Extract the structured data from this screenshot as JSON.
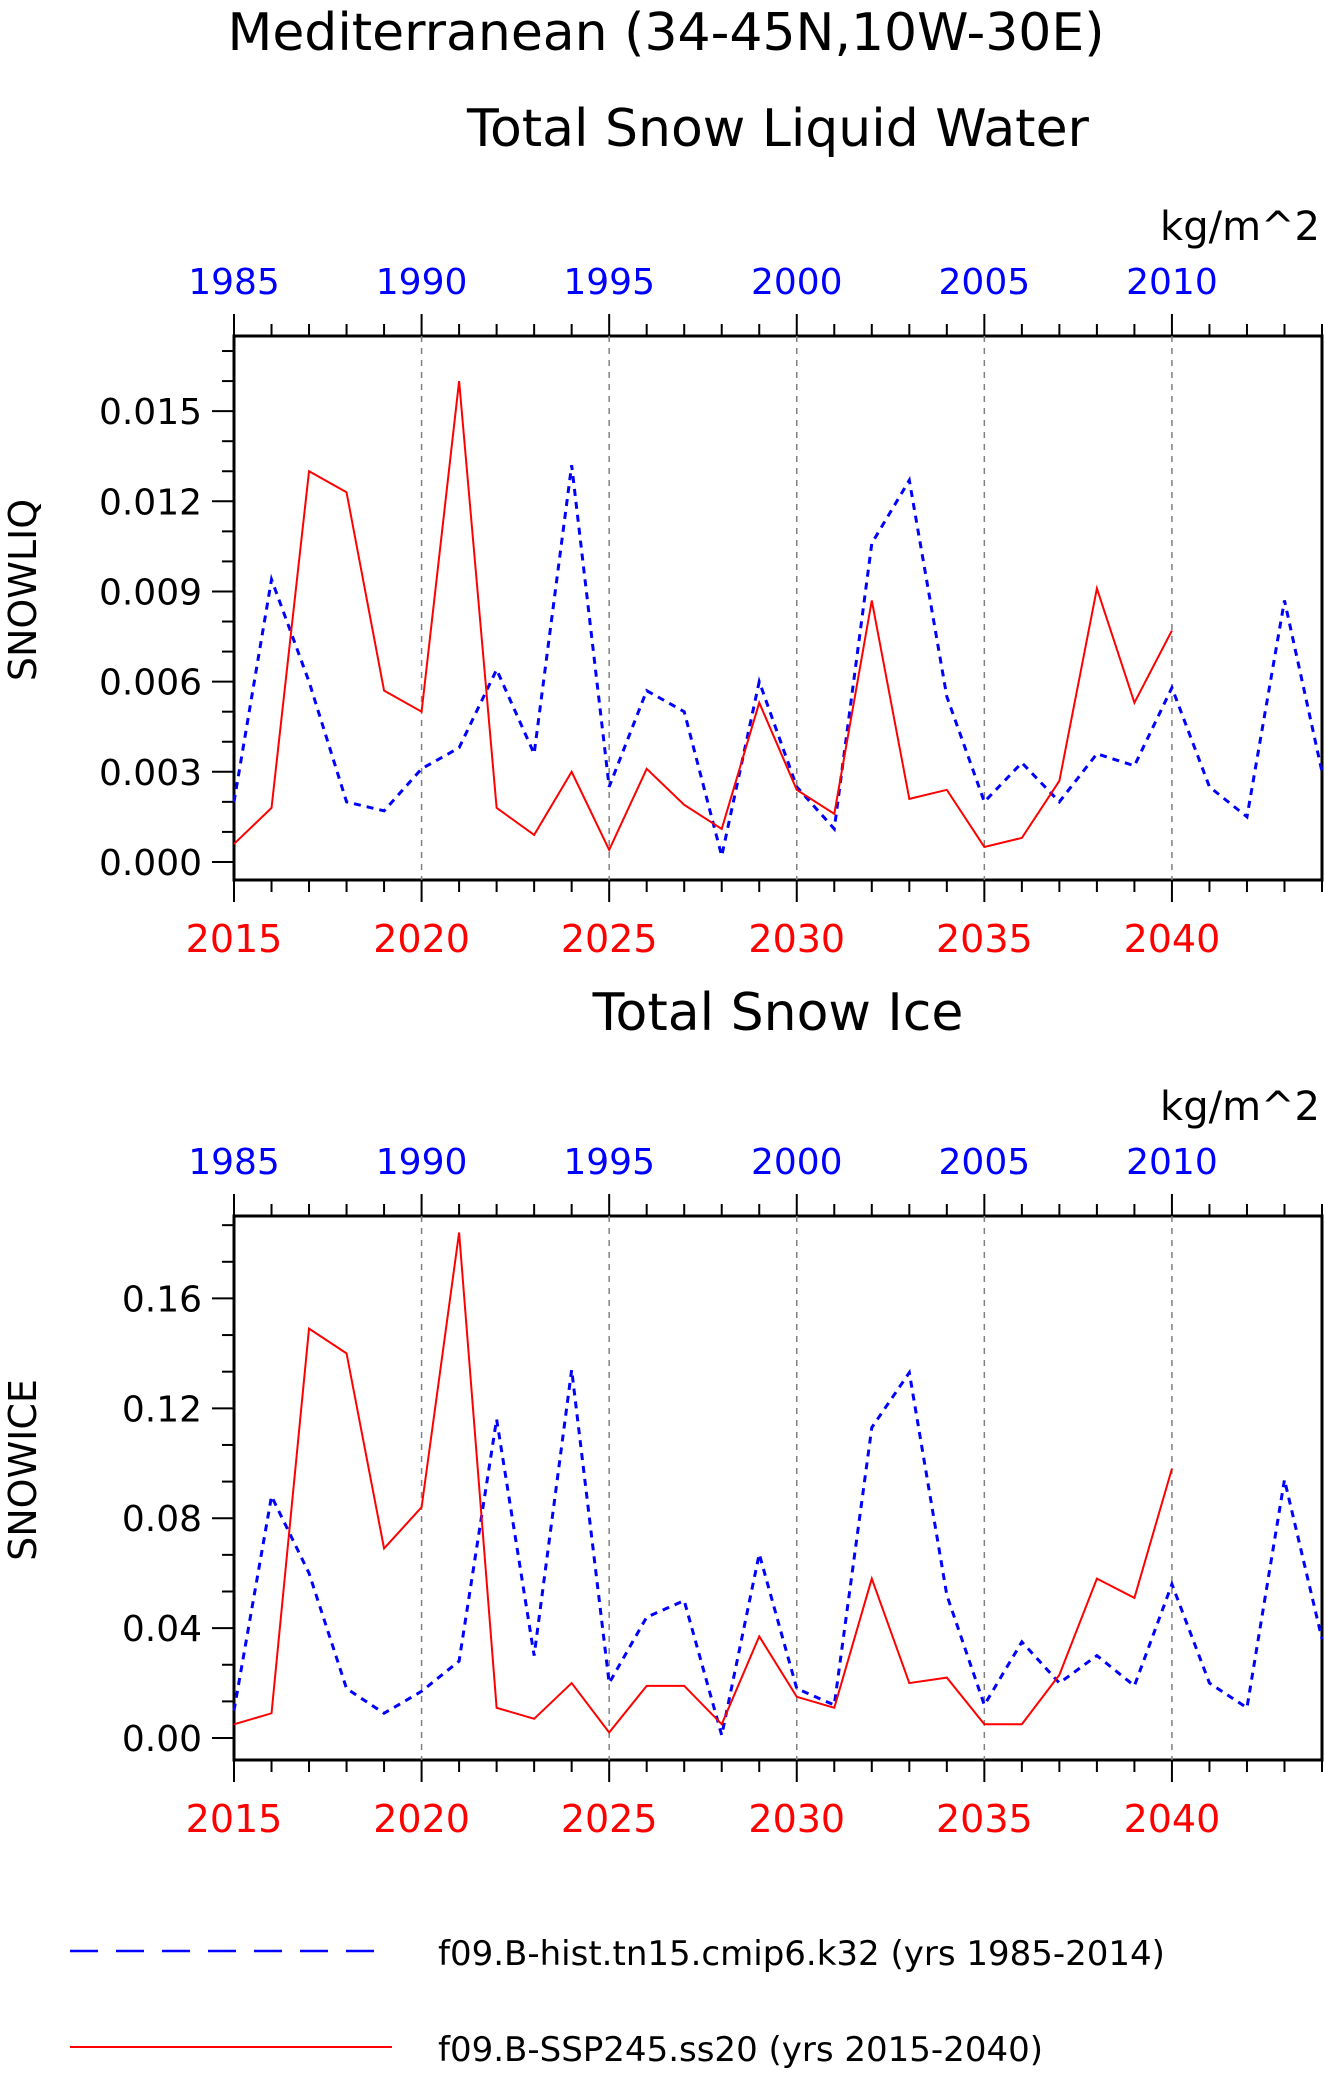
{
  "title_line1": "Mediterranean (34-45N,10W-30E)",
  "units": "kg/m^2",
  "colors": {
    "hist": "#0000ff",
    "ssp": "#ff0000",
    "grid": "#808080",
    "axis": "#000000"
  },
  "legend": [
    {
      "label": "f09.B-hist.tn15.cmip6.k32 (yrs 1985-2014)",
      "color": "#0000ff",
      "style": "dashed"
    },
    {
      "label": "f09.B-SSP245.ss20 (yrs 2015-2040)",
      "color": "#ff0000",
      "style": "solid"
    }
  ],
  "chart_data": [
    {
      "type": "line",
      "title": "Total Snow Liquid Water",
      "ylabel": "SNOWLIQ",
      "units": "kg/m^2",
      "ylim": [
        -0.0006,
        0.0175
      ],
      "yticks": [
        0.0,
        0.003,
        0.006,
        0.009,
        0.012,
        0.015
      ],
      "ytick_labels": [
        "0.000",
        "0.003",
        "0.006",
        "0.009",
        "0.012",
        "0.015"
      ],
      "x_bottom_ticks": [
        2015,
        2020,
        2025,
        2030,
        2035,
        2040
      ],
      "x_top_ticks": [
        1985,
        1990,
        1995,
        2000,
        2005,
        2010
      ],
      "xlim_bottom": [
        2015,
        2044
      ],
      "grid": "vertical dashed at major ticks",
      "series": [
        {
          "name": "f09.B-hist.tn15.cmip6.k32 (yrs 1985-2014)",
          "axis": "top",
          "x": [
            1985,
            1986,
            1987,
            1988,
            1989,
            1990,
            1991,
            1992,
            1993,
            1994,
            1995,
            1996,
            1997,
            1998,
            1999,
            2000,
            2001,
            2002,
            2003,
            2004,
            2005,
            2006,
            2007,
            2008,
            2009,
            2010,
            2011,
            2012,
            2013,
            2014
          ],
          "values": [
            0.002,
            0.0094,
            0.006,
            0.002,
            0.0017,
            0.0031,
            0.0038,
            0.0064,
            0.0036,
            0.0132,
            0.0025,
            0.0057,
            0.005,
            0.0002,
            0.006,
            0.0025,
            0.0011,
            0.0106,
            0.0127,
            0.0055,
            0.002,
            0.0033,
            0.002,
            0.0036,
            0.0032,
            0.0058,
            0.0025,
            0.0015,
            0.0087,
            0.003
          ]
        },
        {
          "name": "f09.B-SSP245.ss20 (yrs 2015-2040)",
          "axis": "bottom",
          "x": [
            2015,
            2016,
            2017,
            2018,
            2019,
            2020,
            2021,
            2022,
            2023,
            2024,
            2025,
            2026,
            2027,
            2028,
            2029,
            2030,
            2031,
            2032,
            2033,
            2034,
            2035,
            2036,
            2037,
            2038,
            2039,
            2040
          ],
          "values": [
            0.0006,
            0.0018,
            0.013,
            0.0123,
            0.0057,
            0.005,
            0.016,
            0.0018,
            0.0009,
            0.003,
            0.0004,
            0.0031,
            0.0019,
            0.0011,
            0.0053,
            0.0024,
            0.0016,
            0.0087,
            0.0021,
            0.0024,
            0.0005,
            0.0008,
            0.0027,
            0.0091,
            0.0053,
            0.0077
          ]
        }
      ]
    },
    {
      "type": "line",
      "title": "Total Snow Ice",
      "ylabel": "SNOWICE",
      "units": "kg/m^2",
      "ylim": [
        -0.008,
        0.19
      ],
      "yticks": [
        0.0,
        0.04,
        0.08,
        0.12,
        0.16
      ],
      "ytick_labels": [
        "0.00",
        "0.04",
        "0.08",
        "0.12",
        "0.16"
      ],
      "x_bottom_ticks": [
        2015,
        2020,
        2025,
        2030,
        2035,
        2040
      ],
      "x_top_ticks": [
        1985,
        1990,
        1995,
        2000,
        2005,
        2010
      ],
      "xlim_bottom": [
        2015,
        2044
      ],
      "grid": "vertical dashed at major ticks",
      "series": [
        {
          "name": "f09.B-hist.tn15.cmip6.k32 (yrs 1985-2014)",
          "axis": "top",
          "x": [
            1985,
            1986,
            1987,
            1988,
            1989,
            1990,
            1991,
            1992,
            1993,
            1994,
            1995,
            1996,
            1997,
            1998,
            1999,
            2000,
            2001,
            2002,
            2003,
            2004,
            2005,
            2006,
            2007,
            2008,
            2009,
            2010,
            2011,
            2012,
            2013,
            2014
          ],
          "values": [
            0.01,
            0.088,
            0.06,
            0.018,
            0.009,
            0.017,
            0.028,
            0.116,
            0.03,
            0.134,
            0.02,
            0.044,
            0.05,
            0.001,
            0.067,
            0.018,
            0.012,
            0.113,
            0.133,
            0.052,
            0.012,
            0.035,
            0.02,
            0.03,
            0.019,
            0.056,
            0.02,
            0.011,
            0.094,
            0.036
          ]
        },
        {
          "name": "f09.B-SSP245.ss20 (yrs 2015-2040)",
          "axis": "bottom",
          "x": [
            2015,
            2016,
            2017,
            2018,
            2019,
            2020,
            2021,
            2022,
            2023,
            2024,
            2025,
            2026,
            2027,
            2028,
            2029,
            2030,
            2031,
            2032,
            2033,
            2034,
            2035,
            2036,
            2037,
            2038,
            2039,
            2040
          ],
          "values": [
            0.005,
            0.009,
            0.149,
            0.14,
            0.069,
            0.084,
            0.184,
            0.011,
            0.007,
            0.02,
            0.002,
            0.019,
            0.019,
            0.005,
            0.037,
            0.015,
            0.011,
            0.058,
            0.02,
            0.022,
            0.005,
            0.005,
            0.023,
            0.058,
            0.051,
            0.098
          ]
        }
      ]
    }
  ]
}
